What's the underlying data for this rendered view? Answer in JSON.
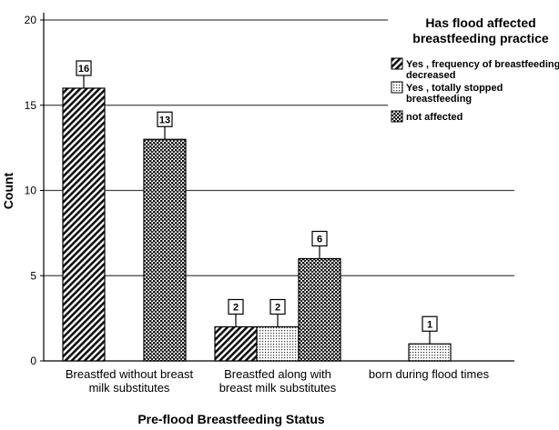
{
  "chart_data": {
    "type": "bar",
    "title": "",
    "xlabel": "Pre-flood Breastfeeding Status",
    "ylabel": "Count",
    "ylim": [
      0,
      20
    ],
    "yticks": [
      0,
      5,
      10,
      15,
      20
    ],
    "grid": true,
    "legend_position": "top-right",
    "legend_title": [
      "Has flood affected",
      "breastfeeding practice"
    ],
    "categories": [
      [
        "Breastfed without breast",
        "milk substitutes"
      ],
      [
        "Breastfed along with",
        "breast milk substitutes"
      ],
      [
        "born during flood times"
      ]
    ],
    "series": [
      {
        "name": [
          "Yes , frequency of breastfeeding",
          "decreased"
        ],
        "pattern": "diagonal-stripes",
        "values": [
          16,
          2,
          null
        ]
      },
      {
        "name": [
          "Yes , totally stopped",
          "breastfeeding"
        ],
        "pattern": "dots",
        "values": [
          null,
          2,
          1
        ]
      },
      {
        "name": [
          "not affected"
        ],
        "pattern": "crosshatch",
        "values": [
          13,
          6,
          null
        ]
      }
    ]
  }
}
